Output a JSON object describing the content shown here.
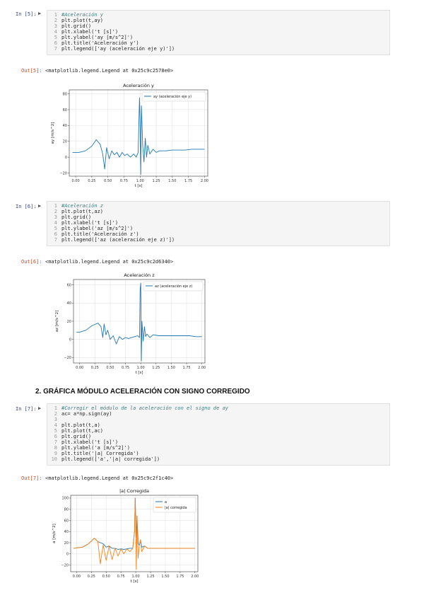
{
  "cells": [
    {
      "in_prompt": "In [5]:",
      "lines": [
        {
          "n": "1",
          "text": "#Aceleración y",
          "comment": true
        },
        {
          "n": "2",
          "text": "plt.plot(t,ay)"
        },
        {
          "n": "3",
          "text": "plt.grid()"
        },
        {
          "n": "4",
          "text": "plt.xlabel('t [s]')"
        },
        {
          "n": "5",
          "text": "plt.ylabel('ay [m/s^2]')"
        },
        {
          "n": "6",
          "text": "plt.title('Aceleración y')"
        },
        {
          "n": "7",
          "text": "plt.legend(['ay (aceleración eje y)'])"
        }
      ],
      "out_prompt": "Out[5]:",
      "out_text": "<matplotlib.legend.Legend at 0x25c9c2578e0>"
    },
    {
      "in_prompt": "In [6]:",
      "lines": [
        {
          "n": "1",
          "text": "#Aceleración z",
          "comment": true
        },
        {
          "n": "2",
          "text": "plt.plot(t,az)"
        },
        {
          "n": "3",
          "text": "plt.grid()"
        },
        {
          "n": "4",
          "text": "plt.xlabel('t [s]')"
        },
        {
          "n": "5",
          "text": "plt.ylabel('az [m/s^2]')"
        },
        {
          "n": "6",
          "text": "plt.title('Aceleración z')"
        },
        {
          "n": "7",
          "text": "plt.legend(['az (aceleración eje z)'])"
        }
      ],
      "out_prompt": "Out[6]:",
      "out_text": "<matplotlib.legend.Legend at 0x25c9c2d6340>"
    },
    {
      "in_prompt": "In [7]:",
      "lines": [
        {
          "n": "1",
          "text": "#Corregir el módulo de la aceleración con el signo de ay",
          "comment": true
        },
        {
          "n": "2",
          "text": "ac= a*np.sign(ay)"
        },
        {
          "n": "3",
          "text": ""
        },
        {
          "n": "4",
          "text": "plt.plot(t,a)"
        },
        {
          "n": "5",
          "text": "plt.plot(t,ac)"
        },
        {
          "n": "6",
          "text": "plt.grid()"
        },
        {
          "n": "7",
          "text": "plt.xlabel('t [s]')"
        },
        {
          "n": "8",
          "text": "plt.ylabel('a [m/s^2]')"
        },
        {
          "n": "9",
          "text": "plt.title('|a| Corregida')"
        },
        {
          "n": "10",
          "text": "plt.legend(['a','|a| corregida'])"
        }
      ],
      "out_prompt": "Out[7]:",
      "out_text": "<matplotlib.legend.Legend at 0x25c9c2f1c40>"
    }
  ],
  "heading": "2. GRÁFICA MÓDULO ACELERACIÓN CON SIGNO CORREGIDO",
  "colors": {
    "blue": "#1f77b4",
    "orange": "#ff7f0e"
  },
  "chart_data": [
    {
      "type": "line",
      "title": "Aceleración y",
      "xlabel": "t [s]",
      "ylabel": "ay [m/s^2]",
      "xlim": [
        -0.1,
        2.05
      ],
      "ylim": [
        -24,
        85
      ],
      "xticks": [
        0.0,
        0.25,
        0.5,
        0.75,
        1.0,
        1.25,
        1.5,
        1.75,
        2.0
      ],
      "xtick_labels": [
        "0.00",
        "0.25",
        "0.50",
        "0.75",
        "1.00",
        "1.25",
        "1.50",
        "1.75",
        "2.00"
      ],
      "yticks": [
        -20,
        0,
        20,
        40,
        60,
        80
      ],
      "yticks_labels": [
        "−20",
        "0",
        "20",
        "40",
        "60",
        "80"
      ],
      "grid": true,
      "legend_position": "top-right",
      "series": [
        {
          "name": "ay (aceleración eje y)",
          "color": "#1f77b4",
          "x": [
            -0.05,
            0.05,
            0.15,
            0.25,
            0.32,
            0.38,
            0.42,
            0.45,
            0.48,
            0.52,
            0.56,
            0.6,
            0.64,
            0.68,
            0.72,
            0.76,
            0.8,
            0.85,
            0.9,
            0.94,
            0.97,
            0.99,
            1.0,
            1.01,
            1.02,
            1.04,
            1.06,
            1.08,
            1.1,
            1.12,
            1.15,
            1.2,
            1.25,
            1.3,
            1.4,
            1.5,
            1.6,
            1.7,
            1.8,
            1.9,
            2.0
          ],
          "y": [
            6,
            6,
            8,
            14,
            22,
            16,
            4,
            -15,
            12,
            -2,
            8,
            3,
            6,
            0,
            6,
            2,
            4,
            0,
            4,
            0,
            6,
            75,
            40,
            -22,
            65,
            15,
            -6,
            24,
            0,
            15,
            4,
            10,
            6,
            8,
            8,
            9,
            9,
            9,
            10,
            10,
            10
          ]
        }
      ]
    },
    {
      "type": "line",
      "title": "Aceleración z",
      "xlabel": "t [s]",
      "ylabel": "az [m/s^2]",
      "xlim": [
        -0.1,
        2.05
      ],
      "ylim": [
        -26,
        66
      ],
      "xticks": [
        0.0,
        0.25,
        0.5,
        0.75,
        1.0,
        1.25,
        1.5,
        1.75,
        2.0
      ],
      "xtick_labels": [
        "0.00",
        "0.25",
        "0.50",
        "0.75",
        "1.00",
        "1.25",
        "1.50",
        "1.75",
        "2.00"
      ],
      "yticks": [
        -20,
        0,
        20,
        40,
        60
      ],
      "yticks_labels": [
        "−20",
        "0",
        "20",
        "40",
        "60"
      ],
      "grid": true,
      "legend_position": "top-right",
      "series": [
        {
          "name": "az (aceleración eje z)",
          "color": "#1f77b4",
          "x": [
            -0.05,
            0.0,
            0.1,
            0.2,
            0.3,
            0.35,
            0.38,
            0.4,
            0.43,
            0.46,
            0.5,
            0.55,
            0.6,
            0.65,
            0.7,
            0.75,
            0.8,
            0.85,
            0.9,
            0.95,
            0.98,
            0.99,
            1.0,
            1.01,
            1.02,
            1.04,
            1.06,
            1.08,
            1.1,
            1.15,
            1.2,
            1.3,
            1.4,
            1.5,
            1.6,
            1.7,
            1.8,
            1.9,
            2.0
          ],
          "y": [
            8,
            8,
            10,
            15,
            18,
            14,
            2,
            17,
            5,
            10,
            0,
            4,
            -5,
            3,
            0,
            2,
            1,
            2,
            3,
            4,
            2,
            55,
            62,
            -24,
            20,
            -2,
            14,
            3,
            6,
            2,
            5,
            4,
            4,
            4,
            4,
            4,
            4,
            3,
            3
          ]
        }
      ]
    },
    {
      "type": "line",
      "title": "|a| Corregida",
      "xlabel": "t [s]",
      "ylabel": "a [m/s^2]",
      "xlim": [
        -0.1,
        2.05
      ],
      "ylim": [
        -32,
        105
      ],
      "xticks": [
        0.0,
        0.25,
        0.5,
        0.75,
        1.0,
        1.25,
        1.5,
        1.75,
        2.0
      ],
      "xtick_labels": [
        "0.00",
        "0.25",
        "0.50",
        "0.75",
        "1.00",
        "1.25",
        "1.50",
        "1.75",
        "2.00"
      ],
      "yticks": [
        -20,
        0,
        20,
        40,
        60,
        80,
        100
      ],
      "yticks_labels": [
        "−20",
        "0",
        "20",
        "40",
        "60",
        "80",
        "100"
      ],
      "grid": true,
      "legend_position": "top-right",
      "series": [
        {
          "name": "a",
          "color": "#1f77b4",
          "x": [
            -0.05,
            0.1,
            0.2,
            0.3,
            0.36,
            0.4,
            0.45,
            0.5,
            0.55,
            0.6,
            0.65,
            0.7,
            0.75,
            0.8,
            0.85,
            0.9,
            0.95,
            0.98,
            0.99,
            1.0,
            1.01,
            1.02,
            1.04,
            1.06,
            1.08,
            1.1,
            1.15,
            1.2,
            1.3,
            1.4,
            1.5,
            1.6,
            1.7,
            1.8,
            1.9,
            2.0
          ],
          "y": [
            10,
            12,
            18,
            28,
            22,
            20,
            18,
            12,
            14,
            10,
            10,
            8,
            9,
            8,
            9,
            10,
            10,
            40,
            100,
            60,
            30,
            68,
            20,
            15,
            25,
            12,
            14,
            10,
            10,
            10,
            10,
            10,
            10,
            10,
            10,
            10
          ]
        },
        {
          "name": "|a| corregida",
          "color": "#ff7f0e",
          "x": [
            -0.05,
            0.1,
            0.2,
            0.3,
            0.36,
            0.4,
            0.45,
            0.5,
            0.55,
            0.6,
            0.65,
            0.7,
            0.75,
            0.8,
            0.85,
            0.9,
            0.95,
            0.98,
            0.99,
            1.0,
            1.01,
            1.02,
            1.04,
            1.06,
            1.08,
            1.1,
            1.15,
            1.2,
            1.3,
            1.4,
            1.5,
            1.6,
            1.7,
            1.8,
            1.9,
            2.0
          ],
          "y": [
            10,
            12,
            18,
            28,
            22,
            -18,
            16,
            -12,
            14,
            -10,
            10,
            -4,
            9,
            0,
            9,
            4,
            10,
            40,
            100,
            60,
            -28,
            68,
            -8,
            15,
            25,
            4,
            14,
            10,
            10,
            10,
            10,
            10,
            10,
            10,
            10,
            10
          ]
        }
      ]
    }
  ]
}
